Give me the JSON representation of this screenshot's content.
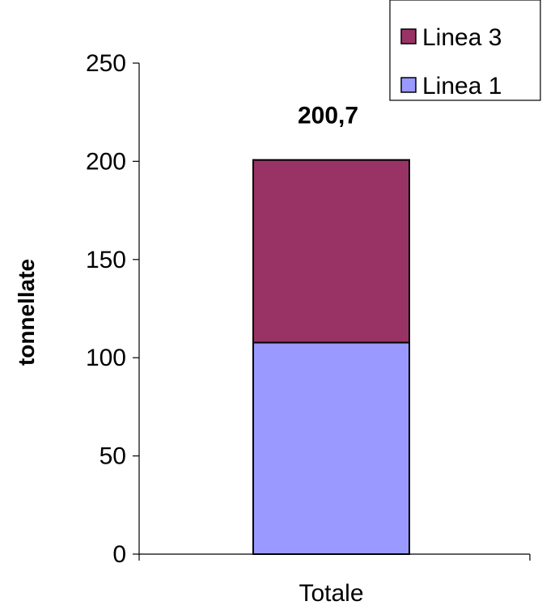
{
  "chart_data": {
    "type": "bar",
    "stacked": true,
    "categories": [
      "Totale"
    ],
    "series": [
      {
        "name": "Linea 1",
        "values": [
          107.7
        ],
        "color": "#9999FF"
      },
      {
        "name": "Linea 3",
        "values": [
          93.0
        ],
        "color": "#993366"
      }
    ],
    "total_labels": [
      "200,7"
    ],
    "ylabel": "tonnellate",
    "xlabel": "",
    "ylim": [
      0,
      250
    ],
    "yticks": [
      0,
      50,
      100,
      150,
      200,
      250
    ],
    "grid": false,
    "legend": {
      "placement": "top-right",
      "entries": [
        "Linea 3",
        "Linea 1"
      ]
    }
  }
}
